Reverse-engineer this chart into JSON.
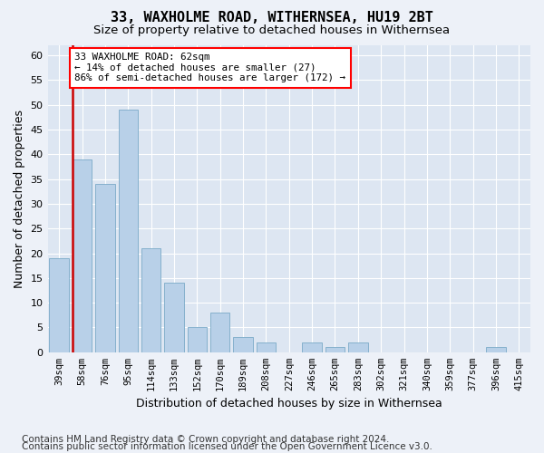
{
  "title": "33, WAXHOLME ROAD, WITHERNSEA, HU19 2BT",
  "subtitle": "Size of property relative to detached houses in Withernsea",
  "xlabel": "Distribution of detached houses by size in Withernsea",
  "ylabel": "Number of detached properties",
  "categories": [
    "39sqm",
    "58sqm",
    "76sqm",
    "95sqm",
    "114sqm",
    "133sqm",
    "152sqm",
    "170sqm",
    "189sqm",
    "208sqm",
    "227sqm",
    "246sqm",
    "265sqm",
    "283sqm",
    "302sqm",
    "321sqm",
    "340sqm",
    "359sqm",
    "377sqm",
    "396sqm",
    "415sqm"
  ],
  "values": [
    19,
    39,
    34,
    49,
    21,
    14,
    5,
    8,
    3,
    2,
    0,
    2,
    1,
    2,
    0,
    0,
    0,
    0,
    0,
    1,
    0
  ],
  "bar_color": "#b8d0e8",
  "bar_edge_color": "#7aaac8",
  "red_line_x": 0.57,
  "annotation_text": "33 WAXHOLME ROAD: 62sqm\n← 14% of detached houses are smaller (27)\n86% of semi-detached houses are larger (172) →",
  "annotation_box_color": "white",
  "annotation_box_edge_color": "red",
  "red_line_color": "#cc0000",
  "ylim_max": 62,
  "yticks": [
    0,
    5,
    10,
    15,
    20,
    25,
    30,
    35,
    40,
    45,
    50,
    55,
    60
  ],
  "footer_line1": "Contains HM Land Registry data © Crown copyright and database right 2024.",
  "footer_line2": "Contains public sector information licensed under the Open Government Licence v3.0.",
  "bg_color": "#edf1f8",
  "plot_bg_color": "#dde6f2",
  "grid_color": "#ffffff",
  "title_fontsize": 11,
  "subtitle_fontsize": 9.5,
  "footer_fontsize": 7.5,
  "xlabel_fontsize": 9,
  "ylabel_fontsize": 9
}
